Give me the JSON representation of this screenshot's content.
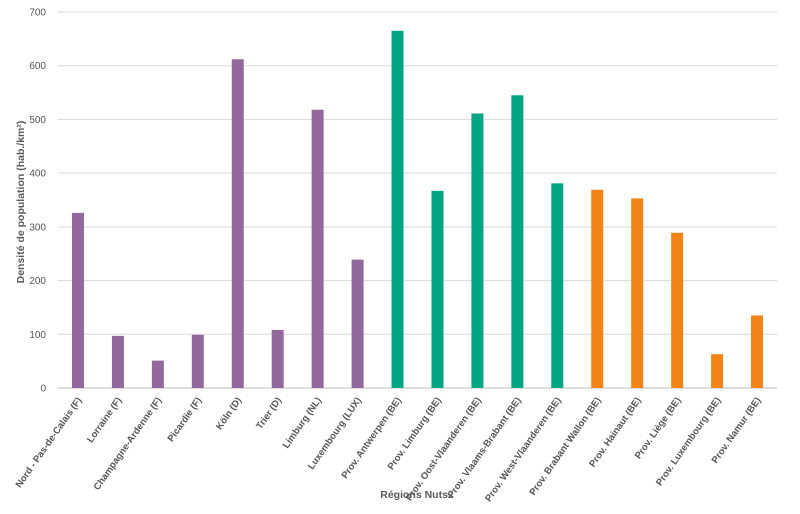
{
  "chart_data": {
    "type": "bar",
    "title": "",
    "xlabel": "Régions Nuts2",
    "ylabel": "Densité de population (hab./km²)",
    "ylim": [
      0,
      700
    ],
    "yticks": [
      0,
      100,
      200,
      300,
      400,
      500,
      600,
      700
    ],
    "grid": true,
    "legend": "none",
    "categories": [
      "Nord - Pas-de-Calais (F)",
      "Lorraine (F)",
      "Champagne-Ardenne (F)",
      "Picardie (F)",
      "Köln (D)",
      "Trier (D)",
      "Limburg (NL)",
      "Luxembourg (LUX)",
      "Prov. Antwerpen (BE)",
      "Prov. Limburg (BE)",
      "Prov. Oost-Vlaanderen (BE)",
      "Prov. Vlaams-Brabant (BE)",
      "Prov. West-Vlaanderen (BE)",
      "Prov. Brabant Wallon (BE)",
      "Prov. Hainaut (BE)",
      "Prov. Liège (BE)",
      "Prov. Luxembourg (BE)",
      "Prov. Namur (BE)"
    ],
    "values": [
      326,
      97,
      51,
      99,
      612,
      108,
      518,
      239,
      665,
      367,
      511,
      545,
      381,
      369,
      353,
      289,
      63,
      135
    ],
    "bar_colors": [
      "#93699d",
      "#93699d",
      "#93699d",
      "#93699d",
      "#93699d",
      "#93699d",
      "#93699d",
      "#93699d",
      "#00a583",
      "#00a583",
      "#00a583",
      "#00a583",
      "#00a583",
      "#f18318",
      "#f18318",
      "#f18318",
      "#f18318",
      "#f18318"
    ],
    "grid_color": "#d9d9d9",
    "axis_color": "#bfbfbf"
  }
}
